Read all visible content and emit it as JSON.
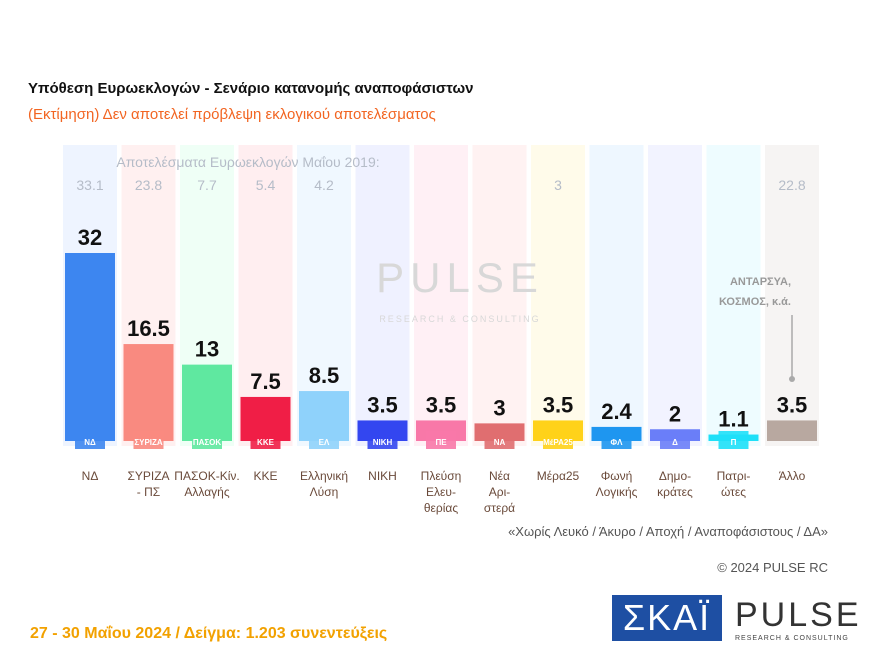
{
  "header": {
    "title": "Υπόθεση Ευρωεκλογών - Σενάριο κατανομής αναποφάσιστων",
    "subtitle": "(Εκτίμηση)   Δεν αποτελεί πρόβλεψη εκλογικού αποτελέσματος"
  },
  "chart_data": {
    "type": "bar",
    "title": "Υπόθεση Ευρωεκλογών - Σενάριο κατανομής αναποφάσιστων",
    "previous_label": "Αποτελέσματα Ευρωεκλογών Μαΐου 2019:",
    "categories": [
      "ΝΔ",
      "ΣΥΡΙΖΑ\n- ΠΣ",
      "ΠΑΣΟΚ-Κίν.\nΑλλαγής",
      "ΚΚΕ",
      "Ελληνική\nΛύση",
      "ΝΙΚΗ",
      "Πλεύση\nΕλευ-\nθερίας",
      "Νέα\nΑρι-\nστερά",
      "Μέρα25",
      "Φωνή\nΛογικής",
      "Δημο-\nκράτες",
      "Πατρι-\nώτες",
      "Άλλο"
    ],
    "values": [
      32,
      16.5,
      13,
      7.5,
      8.5,
      3.5,
      3.5,
      3,
      3.5,
      2.4,
      2,
      1.1,
      3.5
    ],
    "previous_2019": [
      33.1,
      23.8,
      7.7,
      5.4,
      4.2,
      null,
      null,
      null,
      3,
      null,
      null,
      null,
      22.8
    ],
    "colors": [
      "#3d86f0",
      "#f98a80",
      "#5fe8a0",
      "#f01e46",
      "#8fd2fb",
      "#3346f0",
      "#f878a8",
      "#e06e70",
      "#ffd21a",
      "#1e96f0",
      "#6a7ef8",
      "#1ee0f8",
      "#b8a8a0"
    ],
    "bg_colors": [
      "#eef4ff",
      "#fff0f0",
      "#effff6",
      "#ffeef0",
      "#f0f8ff",
      "#eff1ff",
      "#fff0f5",
      "#fff2f2",
      "#fffbea",
      "#eef7ff",
      "#f2f3ff",
      "#eefcff",
      "#f6f4f3"
    ],
    "logos": [
      "ΝΔ",
      "ΣΥΡΙΖΑ",
      "ΠΑΣΟΚ",
      "ΚΚΕ",
      "ΕΛ",
      "ΝΙΚΗ",
      "ΠΕ",
      "ΝΑ",
      "ΜέΡΑ25",
      "ΦΛ",
      "Δ",
      "Π",
      ""
    ],
    "annotation": "ΑΝΤΑΡΣΥΑ, ΚΟΣΜΟΣ, κ.ά.",
    "ylim": [
      0,
      32
    ],
    "grid": false
  },
  "watermark": {
    "main": "PULSE",
    "sub": "RESEARCH & CONSULTING"
  },
  "note": "«Χωρίς Λευκό / Άκυρο / Αποχή / Αναποφάσιστους / ΔΑ»",
  "copyright": "© 2024 PULSE RC",
  "footer": "27 - 30  Μαΐου 2024  /  Δείγμα:  1.203 συνεντεύξεις",
  "logos": {
    "skai": "ΣΚΑΪ",
    "pulse": "PULSE",
    "pulse_sub": "RESEARCH & CONSULTING"
  }
}
